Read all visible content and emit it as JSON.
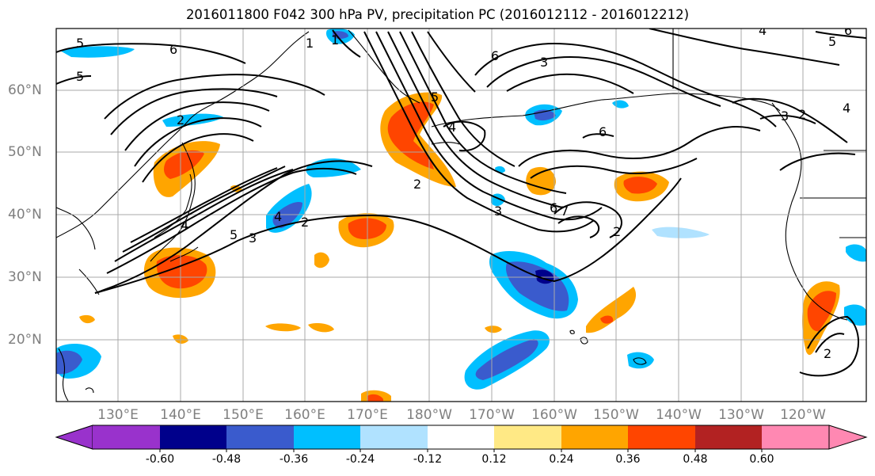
{
  "title": "2016011800 F042 300 hPa PV, precipitation PC (2016012112 - 2016012212)",
  "lat_labels": [
    "60°N",
    "50°N",
    "40°N",
    "30°N",
    "20°N"
  ],
  "lon_labels": [
    "130°E",
    "140°E",
    "150°E",
    "160°E",
    "170°E",
    "180°W",
    "170°W",
    "160°W",
    "150°W",
    "140°W",
    "130°W",
    "120°W"
  ],
  "colorbar": {
    "tick_labels": [
      "-0.60",
      "-0.48",
      "-0.36",
      "-0.24",
      "-0.12",
      "0.12",
      "0.24",
      "0.36",
      "0.48",
      "0.60"
    ],
    "colors": [
      "#9932cc",
      "#00008b",
      "#3a5bcd",
      "#00bfff",
      "#b0e2ff",
      "#ffffff",
      "#ffe985",
      "#ffa500",
      "#ff4500",
      "#b22222",
      "#ff88b2"
    ]
  },
  "pv_contour_labels": [
    "5",
    "6",
    "5",
    "1",
    "2",
    "4",
    "3",
    "2",
    "4",
    "5",
    "3",
    "2",
    "5",
    "6",
    "2",
    "3",
    "4",
    "6",
    "7",
    "1",
    "4",
    "6",
    "3",
    "2",
    "2",
    "6",
    "5",
    "4"
  ],
  "colors": {
    "land_outline": "#000000",
    "grid": "#a9a9a9",
    "axis_label": "#7f7f7f"
  }
}
